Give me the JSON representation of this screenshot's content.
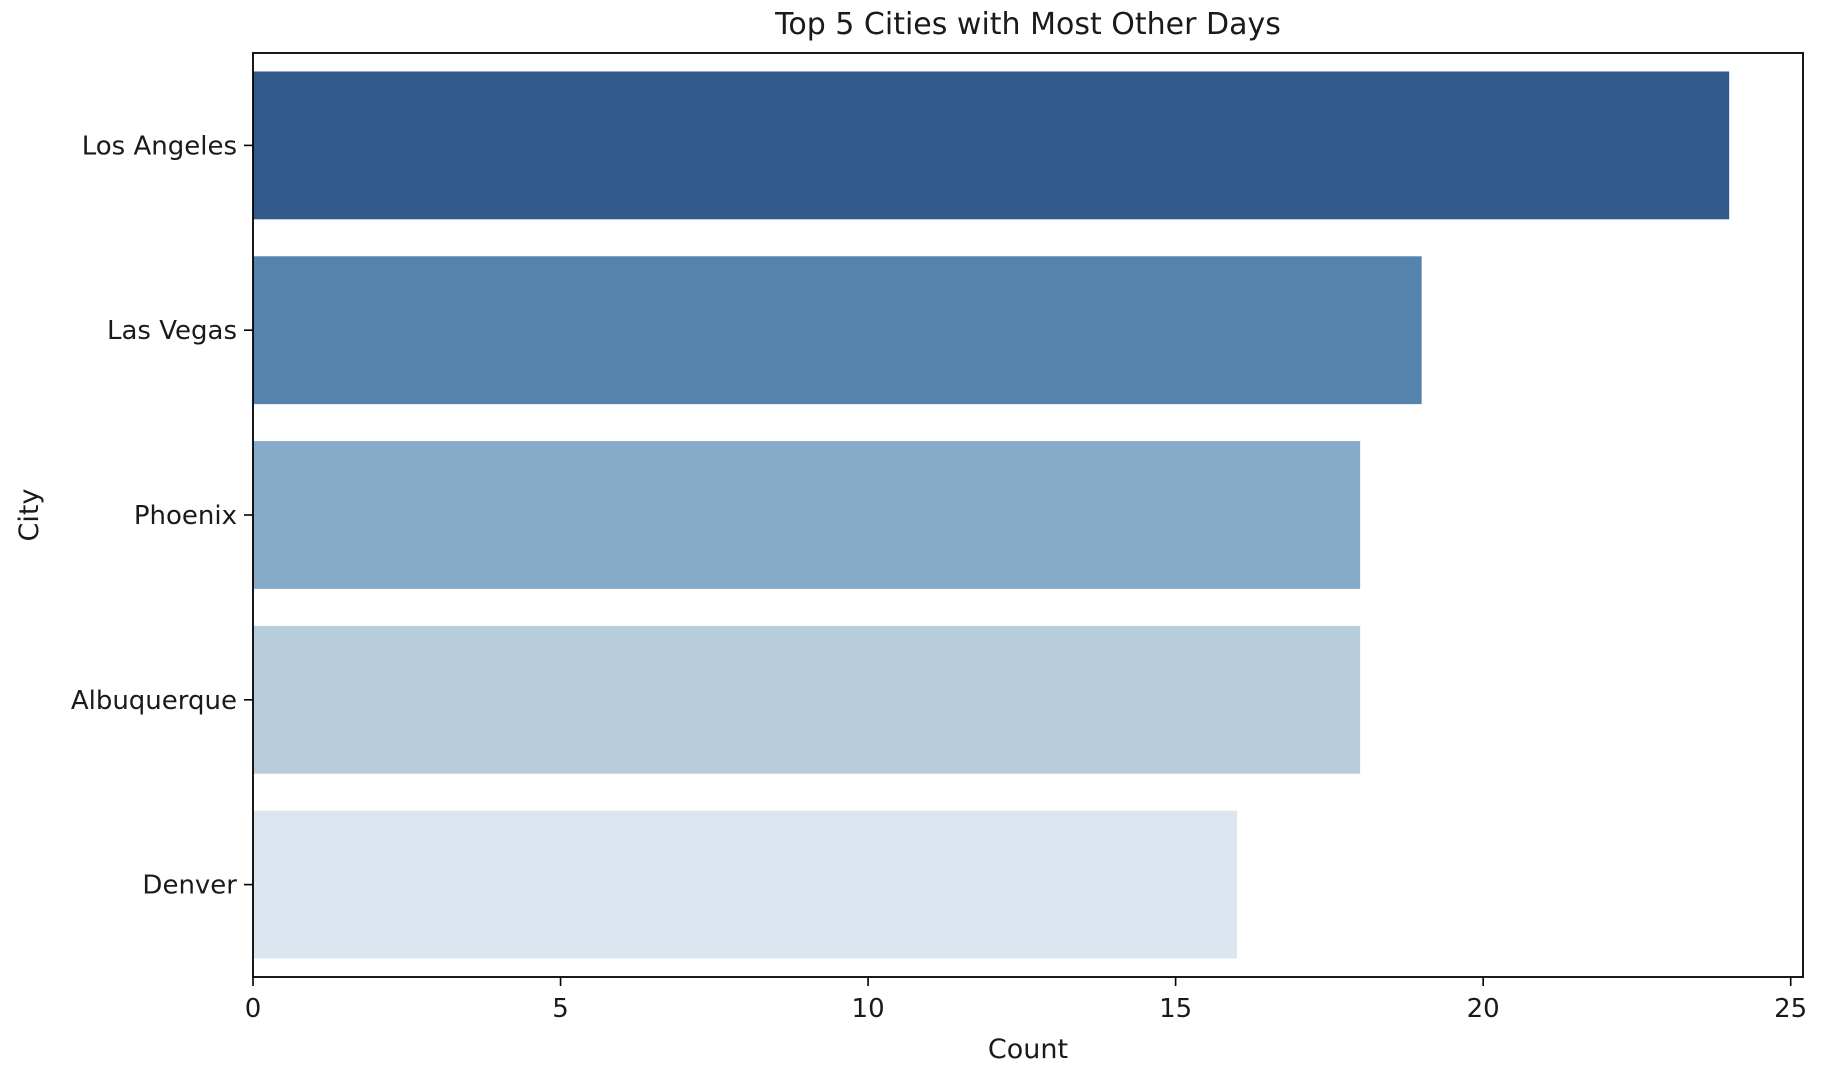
{
  "chart_data": {
    "type": "bar",
    "orientation": "horizontal",
    "title": "Top 5 Cities with Most Other Days",
    "xlabel": "Count",
    "ylabel": "City",
    "categories": [
      "Los Angeles",
      "Las Vegas",
      "Phoenix",
      "Albuquerque",
      "Denver"
    ],
    "values": [
      24,
      19,
      18,
      18,
      16
    ],
    "colors": [
      "#325b8c",
      "#5683ab",
      "#86aac7",
      "#b8cddc",
      "#dce6f0"
    ],
    "xlim": [
      0,
      25.2
    ],
    "xticks": [
      0,
      5,
      10,
      15,
      20,
      25
    ],
    "grid": false
  }
}
